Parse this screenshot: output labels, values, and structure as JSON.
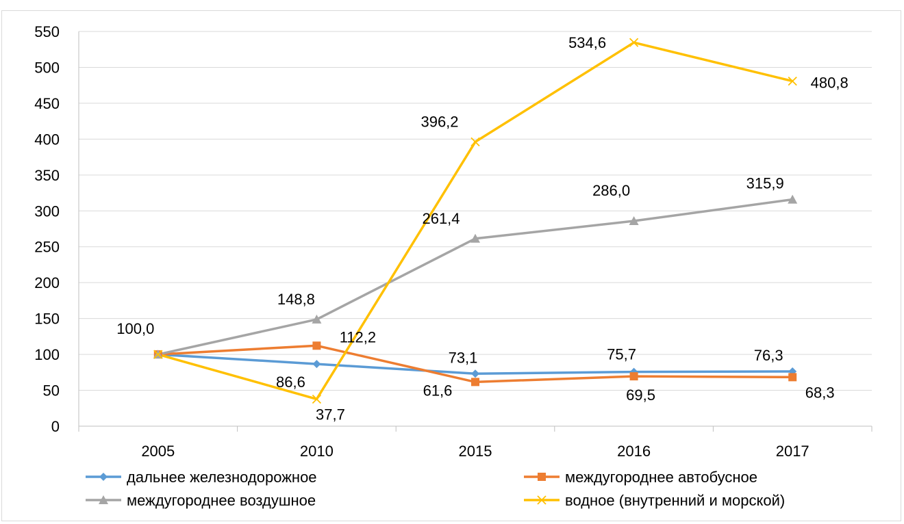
{
  "chart_data": {
    "type": "line",
    "categories": [
      "2005",
      "2010",
      "2015",
      "2016",
      "2017"
    ],
    "ylim": [
      0,
      550
    ],
    "yticks": [
      0,
      50,
      100,
      150,
      200,
      250,
      300,
      350,
      400,
      450,
      500,
      550
    ],
    "grid": true,
    "legend_position": "bottom",
    "series": [
      {
        "name": "дальнее железнодорожное",
        "color": "#5B9BD5",
        "marker": "diamond",
        "values": [
          100.0,
          86.6,
          73.1,
          75.7,
          76.3
        ],
        "labels": [
          "",
          "86,6",
          "73,1",
          "75,7",
          "76,3"
        ]
      },
      {
        "name": "междугороднее автобусное",
        "color": "#ED7D31",
        "marker": "square",
        "values": [
          100.0,
          112.2,
          61.6,
          69.5,
          68.3
        ],
        "labels": [
          "",
          "112,2",
          "61,6",
          "69,5",
          "68,3"
        ]
      },
      {
        "name": "междугороднее воздушное",
        "color": "#A5A5A5",
        "marker": "triangle",
        "values": [
          100.0,
          148.8,
          261.4,
          286.0,
          315.9
        ],
        "labels": [
          "100,0",
          "148,8",
          "261,4",
          "286,0",
          "315,9"
        ]
      },
      {
        "name": "водное (внутренний и морской)",
        "color": "#FFC000",
        "marker": "x",
        "values": [
          100.0,
          37.7,
          396.2,
          534.6,
          480.8
        ],
        "labels": [
          "",
          "37,7",
          "396,2",
          "534,6",
          "480,8"
        ]
      }
    ]
  }
}
